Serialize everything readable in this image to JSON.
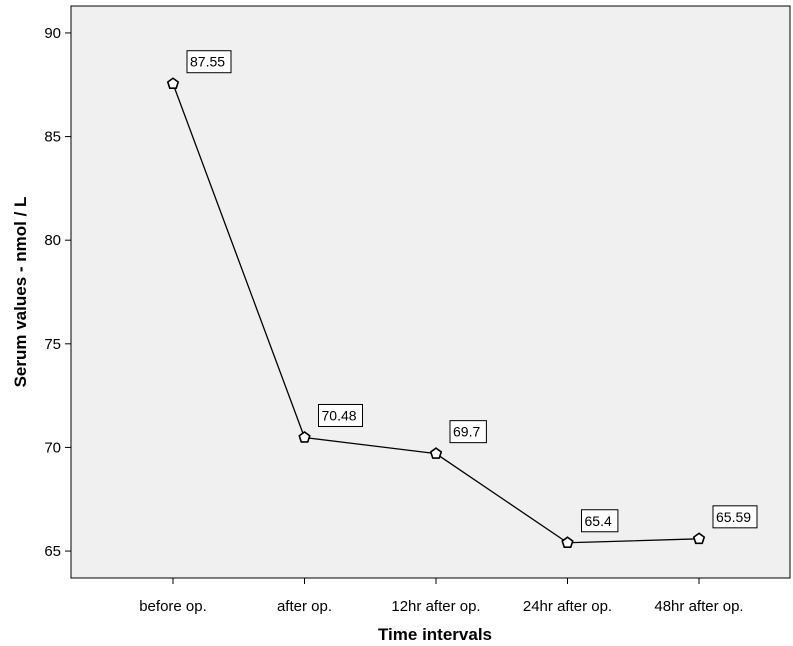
{
  "chart_data": {
    "type": "line",
    "title": "",
    "xlabel": "Time intervals",
    "ylabel": "Serum values - nmol / L",
    "categories": [
      "before op.",
      "after op.",
      "12hr after op.",
      "24hr after op.",
      "48hr after op."
    ],
    "values": [
      87.55,
      70.48,
      69.7,
      65.4,
      65.59
    ],
    "data_labels": [
      "87.55",
      "70.48",
      "69.7",
      "65.4",
      "65.59"
    ],
    "y_ticks": [
      65,
      70,
      75,
      80,
      85,
      90
    ],
    "ylim": [
      63.7,
      91.3
    ],
    "grid": false,
    "marker": "pentagon",
    "colors": {
      "plot_background": "#f0f0f0",
      "line": "#000000",
      "marker_fill": "#ffffff"
    }
  }
}
